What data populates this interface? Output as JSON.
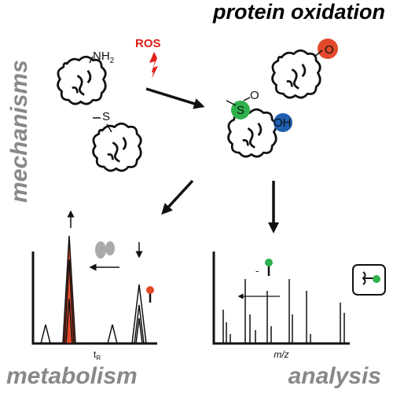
{
  "header": {
    "title": "protein oxidation"
  },
  "labels": {
    "mechanisms": "mechanisms",
    "metabolism": "metabolism",
    "analysis": "analysis"
  },
  "reagents": {
    "ros": "ROS"
  },
  "groups": {
    "amine": "NH",
    "amine_sub": "2",
    "thioether": "S",
    "sulfoxide_s": "S",
    "sulfoxide_o": "O",
    "hydroxyl": "OH",
    "carbonyl_o": "O"
  },
  "axes": {
    "retention": "t",
    "retention_sub": "R",
    "mz": "m/z",
    "loss": "-"
  }
}
